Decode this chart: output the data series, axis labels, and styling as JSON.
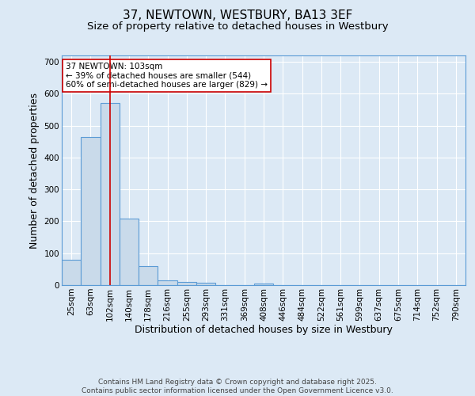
{
  "title": "37, NEWTOWN, WESTBURY, BA13 3EF",
  "subtitle": "Size of property relative to detached houses in Westbury",
  "xlabel": "Distribution of detached houses by size in Westbury",
  "ylabel": "Number of detached properties",
  "categories": [
    "25sqm",
    "63sqm",
    "102sqm",
    "140sqm",
    "178sqm",
    "216sqm",
    "255sqm",
    "293sqm",
    "331sqm",
    "369sqm",
    "408sqm",
    "446sqm",
    "484sqm",
    "522sqm",
    "561sqm",
    "599sqm",
    "637sqm",
    "675sqm",
    "714sqm",
    "752sqm",
    "790sqm"
  ],
  "values": [
    80,
    465,
    570,
    208,
    60,
    16,
    9,
    8,
    0,
    0,
    6,
    0,
    0,
    0,
    0,
    0,
    0,
    0,
    0,
    0,
    0
  ],
  "bar_color": "#c9daea",
  "bar_edge_color": "#5b9bd5",
  "background_color": "#dce9f5",
  "plot_bg_color": "#dce9f5",
  "grid_color": "#ffffff",
  "vline_x": 2,
  "vline_color": "#cc0000",
  "annotation_text": "37 NEWTOWN: 103sqm\n← 39% of detached houses are smaller (544)\n60% of semi-detached houses are larger (829) →",
  "annotation_box_color": "#ffffff",
  "annotation_box_edge": "#cc0000",
  "ylim": [
    0,
    720
  ],
  "yticks": [
    0,
    100,
    200,
    300,
    400,
    500,
    600,
    700
  ],
  "footnote": "Contains HM Land Registry data © Crown copyright and database right 2025.\nContains public sector information licensed under the Open Government Licence v3.0.",
  "title_fontsize": 11,
  "subtitle_fontsize": 9.5,
  "label_fontsize": 9,
  "tick_fontsize": 7.5,
  "annotation_fontsize": 7.5,
  "footnote_fontsize": 6.5
}
